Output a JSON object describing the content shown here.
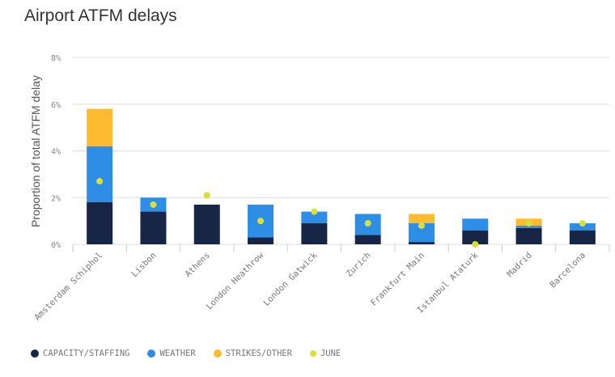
{
  "chart_data": {
    "type": "bar",
    "stacked": true,
    "title": "Airport ATFM delays",
    "ylabel": "Proportion of total ATFM delay",
    "ylim": [
      0,
      8
    ],
    "yticks": [
      "0%",
      "2%",
      "4%",
      "6%",
      "8%"
    ],
    "grid": true,
    "legend_position": "bottom",
    "categories": [
      "Amsterdam Schiphol",
      "Lisbon",
      "Athens",
      "London Heathrow",
      "London Gatwick",
      "Zurich",
      "Frankfurt Main",
      "Istanbul Ataturk",
      "Madrid",
      "Barcelona"
    ],
    "series": [
      {
        "name": "CAPACITY/STAFFING",
        "color": "#172647",
        "values": [
          1.8,
          1.4,
          1.7,
          0.3,
          0.9,
          0.4,
          0.1,
          0.6,
          0.7,
          0.6
        ]
      },
      {
        "name": "WEATHER",
        "color": "#2e8de4",
        "values": [
          2.4,
          0.6,
          0,
          1.4,
          0.5,
          0.9,
          0.8,
          0.5,
          0.1,
          0.3
        ]
      },
      {
        "name": "STRIKES/OTHER",
        "color": "#fdbb30",
        "values": [
          1.6,
          0,
          0,
          0,
          0,
          0,
          0.4,
          0,
          0.3,
          0
        ]
      }
    ],
    "points": {
      "name": "JUNE",
      "color": "#d8e03a",
      "values": [
        2.7,
        1.7,
        2.1,
        1.0,
        1.4,
        0.9,
        0.8,
        0.0,
        0.9,
        0.9
      ]
    }
  }
}
